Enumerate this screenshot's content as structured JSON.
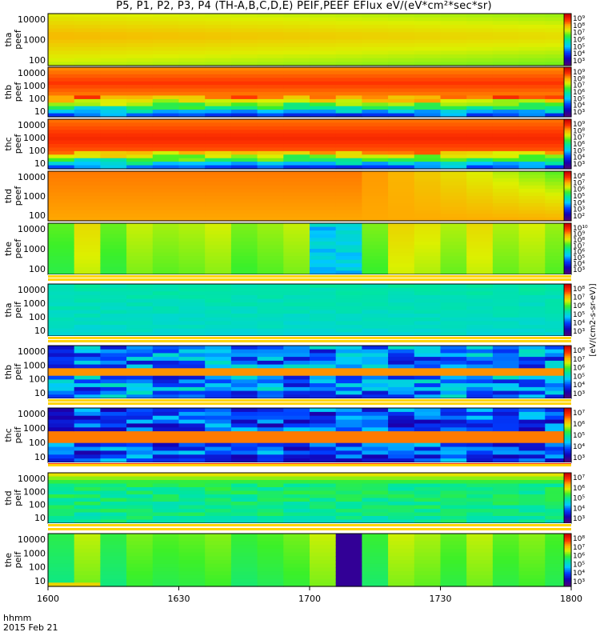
{
  "title": "P5, P1, P2, P3, P4 (TH-A,B,C,D,E) PEIF,PEEF EFlux eV/(eV*cm²*sec*sr)",
  "footer": {
    "line1": "hhmm",
    "line2": "2015 Feb 21"
  },
  "colorbar_unit_label": "[eV/(cm2-s-sr-eV)]",
  "chart_data": {
    "type": "heatmap",
    "x_unit": "hhmm",
    "x_range_hhmm": [
      "1600",
      "1800"
    ],
    "x_ticks": [
      "1600",
      "1630",
      "1700",
      "1730",
      "1800"
    ],
    "panels": [
      {
        "ylabel": [
          "tha",
          "peef"
        ],
        "yticks": [
          "10000",
          "1000",
          "100"
        ],
        "cbar_ticks": [
          "10⁹",
          "10⁸",
          "10⁷",
          "10⁶",
          "10⁵",
          "10⁴",
          "10³"
        ],
        "pattern": "tha_peef"
      },
      {
        "ylabel": [
          "thb",
          "peef"
        ],
        "yticks": [
          "10000",
          "1000",
          "100",
          "10"
        ],
        "cbar_ticks": [
          "10⁹",
          "10⁸",
          "10⁷",
          "10⁶",
          "10⁵",
          "10⁴",
          "10³"
        ],
        "pattern": "thb_peef"
      },
      {
        "ylabel": [
          "thc",
          "peef"
        ],
        "yticks": [
          "10000",
          "1000",
          "100",
          "10"
        ],
        "cbar_ticks": [
          "10⁹",
          "10⁸",
          "10⁷",
          "10⁶",
          "10⁵",
          "10⁴",
          "10³"
        ],
        "pattern": "thc_peef"
      },
      {
        "ylabel": [
          "thd",
          "peef"
        ],
        "yticks": [
          "10000",
          "1000",
          "100"
        ],
        "cbar_ticks": [
          "10⁸",
          "10⁷",
          "10⁶",
          "10⁵",
          "10⁴",
          "10³",
          "10²"
        ],
        "pattern": "thd_peef"
      },
      {
        "ylabel": [
          "the",
          "peef"
        ],
        "yticks": [
          "10000",
          "1000",
          "100"
        ],
        "cbar_ticks": [
          "10¹⁰",
          "10⁹",
          "10⁸",
          "10⁷",
          "10⁶",
          "10⁵",
          "10⁴",
          "10³"
        ],
        "pattern": "the_peef"
      },
      {
        "ylabel": [
          "tha",
          "peif"
        ],
        "yticks": [
          "10000",
          "1000",
          "100",
          "10"
        ],
        "cbar_ticks": [
          "10⁸",
          "10⁷",
          "10⁶",
          "10⁵",
          "10⁴",
          "10³"
        ],
        "pattern": "tha_peif"
      },
      {
        "ylabel": [
          "thb",
          "peif"
        ],
        "yticks": [
          "10000",
          "1000",
          "100",
          "10"
        ],
        "cbar_ticks": [
          "10⁸",
          "10⁷",
          "10⁶",
          "10⁵",
          "10⁴",
          "10³"
        ],
        "pattern": "thb_peif"
      },
      {
        "ylabel": [
          "thc",
          "peif"
        ],
        "yticks": [
          "10000",
          "1000",
          "100",
          "10"
        ],
        "cbar_ticks": [
          "10⁷",
          "10⁶",
          "10⁵",
          "10⁴",
          "10³"
        ],
        "pattern": "thc_peif"
      },
      {
        "ylabel": [
          "thd",
          "peif"
        ],
        "yticks": [
          "10000",
          "1000",
          "100",
          "10"
        ],
        "cbar_ticks": [
          "10⁷",
          "10⁶",
          "10⁵",
          "10⁴",
          "10³"
        ],
        "pattern": "thd_peif"
      },
      {
        "ylabel": [
          "the",
          "peif"
        ],
        "yticks": [
          "10000",
          "1000",
          "100",
          "10"
        ],
        "cbar_ticks": [
          "10⁸",
          "10⁷",
          "10⁶",
          "10⁵",
          "10⁴",
          "10³"
        ],
        "pattern": "the_peif"
      }
    ]
  }
}
